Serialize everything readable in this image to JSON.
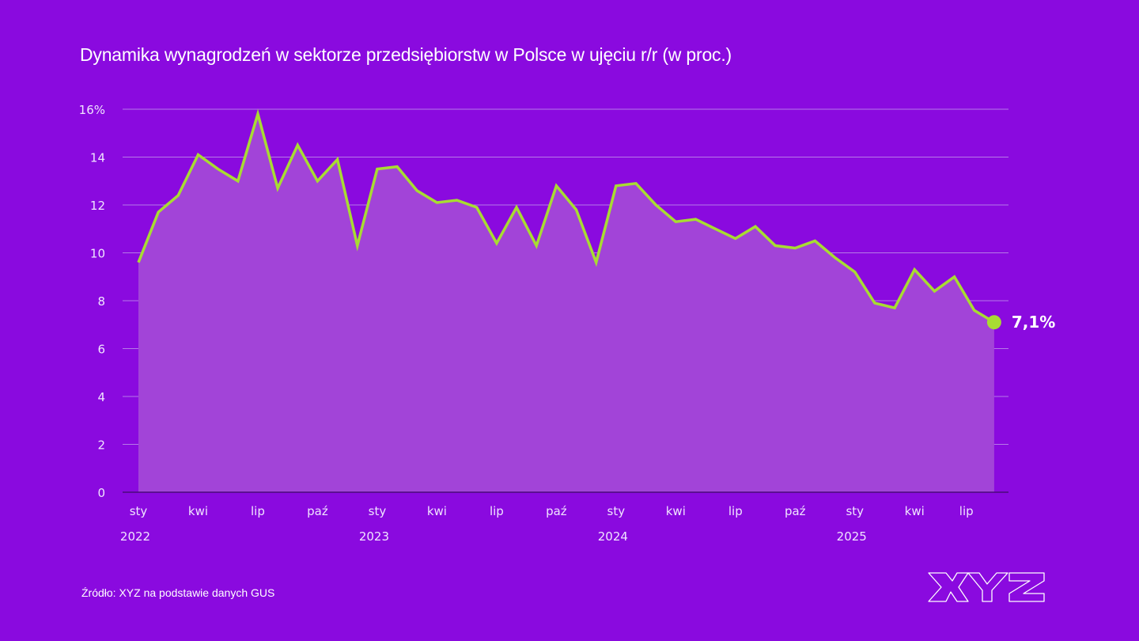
{
  "title": "Dynamika wynagrodzeń w sektorze przedsiębiorstw w Polsce w ujęciu r/r (w proc.)",
  "source": "Źródło: XYZ na podstawie danych GUS",
  "logo_text": "XYZ",
  "colors": {
    "background": "#8a0adf",
    "area_fill": "#a244d8",
    "line": "#a8dc32",
    "grid": "#b77ae8",
    "text": "#f0e4ff"
  },
  "chart_data": {
    "type": "area",
    "title": "Dynamika wynagrodzeń w sektorze przedsiębiorstw w Polsce w ujęciu r/r (w proc.)",
    "xlabel": "",
    "ylabel": "",
    "ylim": [
      0,
      16
    ],
    "y_ticks": [
      "0",
      "2",
      "4",
      "6",
      "8",
      "10",
      "12",
      "14",
      "16%"
    ],
    "y_tick_values": [
      0,
      2,
      4,
      6,
      8,
      10,
      12,
      14,
      16
    ],
    "grid": true,
    "x_month_labels": [
      {
        "index": 0,
        "label": "sty"
      },
      {
        "index": 3,
        "label": "kwi"
      },
      {
        "index": 6,
        "label": "lip"
      },
      {
        "index": 9,
        "label": "paź"
      },
      {
        "index": 12,
        "label": "sty"
      },
      {
        "index": 15,
        "label": "kwi"
      },
      {
        "index": 18,
        "label": "lip"
      },
      {
        "index": 21,
        "label": "paź"
      },
      {
        "index": 24,
        "label": "sty"
      },
      {
        "index": 27,
        "label": "kwi"
      },
      {
        "index": 30,
        "label": "lip"
      },
      {
        "index": 33,
        "label": "paź"
      },
      {
        "index": 36,
        "label": "sty"
      },
      {
        "index": 39,
        "label": "kwi"
      },
      {
        "index": 42,
        "label": "lip"
      }
    ],
    "x_year_labels": [
      {
        "index": 0,
        "label": "2022"
      },
      {
        "index": 12,
        "label": "2023"
      },
      {
        "index": 24,
        "label": "2024"
      },
      {
        "index": 36,
        "label": "2025"
      }
    ],
    "series": [
      {
        "name": "Dynamika wynagrodzeń r/r",
        "values": [
          9.6,
          11.7,
          12.4,
          14.1,
          13.5,
          13.0,
          15.8,
          12.7,
          14.5,
          13.0,
          13.9,
          10.3,
          13.5,
          13.6,
          12.6,
          12.1,
          12.2,
          11.9,
          10.4,
          11.9,
          10.3,
          12.8,
          11.8,
          9.6,
          12.8,
          12.9,
          12.0,
          11.3,
          11.4,
          11.0,
          10.6,
          11.1,
          10.3,
          10.2,
          10.5,
          9.8,
          9.2,
          7.9,
          7.7,
          9.3,
          8.4,
          9.0,
          7.6,
          7.1
        ]
      }
    ],
    "end_label": "7,1%"
  }
}
